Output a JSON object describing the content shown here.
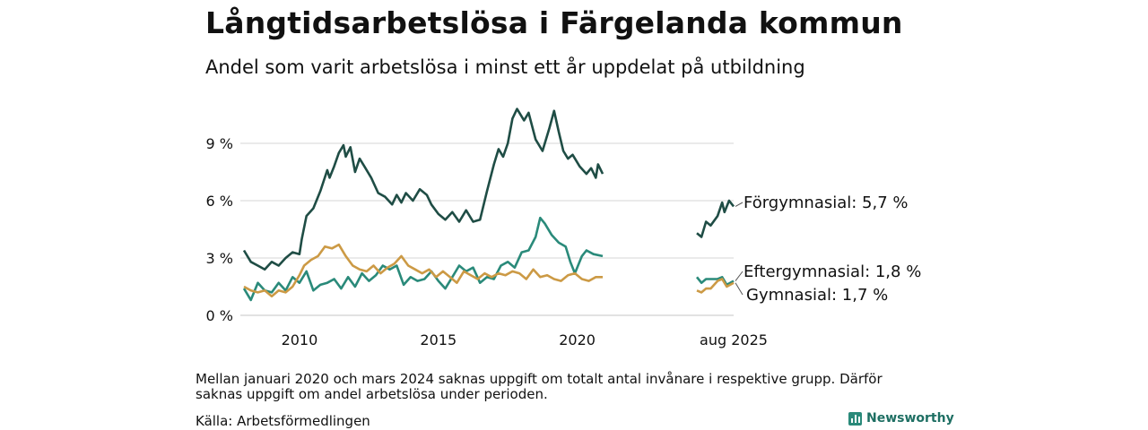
{
  "title": "Långtidsarbetslösa i Färgelanda kommun",
  "subtitle": "Andel som varit arbetslösa i minst ett år uppdelat på utbildning",
  "footnote": "Mellan januari 2020 och mars 2024 saknas uppgift om totalt antal invånare i respektive grupp. Därför saknas uppgift om andel arbetslösa under perioden.",
  "source": "Källa: Arbetsförmedlingen",
  "brand": "Newsworthy",
  "chart_data": {
    "type": "line",
    "title": "Långtidsarbetslösa i Färgelanda kommun",
    "subtitle": "Andel som varit arbetslösa i minst ett år uppdelat på utbildning",
    "x_ticks": [
      "2010",
      "2015",
      "2020",
      "aug 2025"
    ],
    "y_ticks": [
      "0 %",
      "3 %",
      "6 %",
      "9 %"
    ],
    "ylim": [
      0,
      11
    ],
    "grid": true,
    "segments": [
      {
        "from": "2008-01",
        "to": "2020-12"
      },
      {
        "from": "2024-04",
        "to": "2025-08"
      }
    ],
    "series": [
      {
        "name": "Förgymnasial",
        "end_label": "Förgymnasial: 5,7 %",
        "color": "#1f4d45",
        "points": [
          [
            "2008-01",
            3.4
          ],
          [
            "2008-04",
            2.8
          ],
          [
            "2008-07",
            2.6
          ],
          [
            "2008-10",
            2.4
          ],
          [
            "2009-01",
            2.8
          ],
          [
            "2009-04",
            2.6
          ],
          [
            "2009-07",
            3.0
          ],
          [
            "2009-10",
            3.3
          ],
          [
            "2010-01",
            3.2
          ],
          [
            "2010-02",
            4.0
          ],
          [
            "2010-04",
            5.2
          ],
          [
            "2010-07",
            5.6
          ],
          [
            "2010-10",
            6.5
          ],
          [
            "2011-01",
            7.6
          ],
          [
            "2011-02",
            7.2
          ],
          [
            "2011-04",
            7.8
          ],
          [
            "2011-06",
            8.5
          ],
          [
            "2011-08",
            8.9
          ],
          [
            "2011-09",
            8.3
          ],
          [
            "2011-11",
            8.8
          ],
          [
            "2012-01",
            7.5
          ],
          [
            "2012-03",
            8.2
          ],
          [
            "2012-05",
            7.8
          ],
          [
            "2012-08",
            7.2
          ],
          [
            "2012-11",
            6.4
          ],
          [
            "2013-02",
            6.2
          ],
          [
            "2013-05",
            5.8
          ],
          [
            "2013-07",
            6.3
          ],
          [
            "2013-09",
            5.9
          ],
          [
            "2013-11",
            6.4
          ],
          [
            "2014-02",
            6.0
          ],
          [
            "2014-05",
            6.6
          ],
          [
            "2014-08",
            6.3
          ],
          [
            "2014-10",
            5.8
          ],
          [
            "2015-01",
            5.3
          ],
          [
            "2015-04",
            5.0
          ],
          [
            "2015-07",
            5.4
          ],
          [
            "2015-10",
            4.9
          ],
          [
            "2016-01",
            5.5
          ],
          [
            "2016-04",
            4.9
          ],
          [
            "2016-07",
            5.0
          ],
          [
            "2016-10",
            6.5
          ],
          [
            "2017-01",
            7.9
          ],
          [
            "2017-03",
            8.7
          ],
          [
            "2017-05",
            8.3
          ],
          [
            "2017-07",
            9.0
          ],
          [
            "2017-09",
            10.3
          ],
          [
            "2017-11",
            10.8
          ],
          [
            "2018-02",
            10.2
          ],
          [
            "2018-04",
            10.6
          ],
          [
            "2018-07",
            9.2
          ],
          [
            "2018-10",
            8.6
          ],
          [
            "2019-01",
            9.8
          ],
          [
            "2019-03",
            10.7
          ],
          [
            "2019-05",
            9.6
          ],
          [
            "2019-07",
            8.6
          ],
          [
            "2019-09",
            8.2
          ],
          [
            "2019-11",
            8.4
          ],
          [
            "2020-02",
            7.8
          ],
          [
            "2020-05",
            7.4
          ],
          [
            "2020-07",
            7.7
          ],
          [
            "2020-09",
            7.2
          ],
          [
            "2020-10",
            7.9
          ],
          [
            "2020-12",
            7.4
          ],
          [
            "2024-04",
            4.3
          ],
          [
            "2024-06",
            4.1
          ],
          [
            "2024-08",
            4.9
          ],
          [
            "2024-10",
            4.7
          ],
          [
            "2025-01",
            5.2
          ],
          [
            "2025-03",
            5.9
          ],
          [
            "2025-04",
            5.4
          ],
          [
            "2025-06",
            6.0
          ],
          [
            "2025-08",
            5.7
          ]
        ]
      },
      {
        "name": "Eftergymnasial",
        "end_label": "Eftergymnasial: 1,8 %",
        "color": "#2a8a7a",
        "points": [
          [
            "2008-01",
            1.4
          ],
          [
            "2008-04",
            0.8
          ],
          [
            "2008-07",
            1.7
          ],
          [
            "2008-10",
            1.3
          ],
          [
            "2009-01",
            1.2
          ],
          [
            "2009-04",
            1.7
          ],
          [
            "2009-07",
            1.3
          ],
          [
            "2009-10",
            2.0
          ],
          [
            "2010-01",
            1.7
          ],
          [
            "2010-04",
            2.3
          ],
          [
            "2010-07",
            1.3
          ],
          [
            "2010-10",
            1.6
          ],
          [
            "2011-01",
            1.7
          ],
          [
            "2011-04",
            1.9
          ],
          [
            "2011-07",
            1.4
          ],
          [
            "2011-10",
            2.0
          ],
          [
            "2012-01",
            1.5
          ],
          [
            "2012-04",
            2.2
          ],
          [
            "2012-07",
            1.8
          ],
          [
            "2012-10",
            2.1
          ],
          [
            "2013-01",
            2.6
          ],
          [
            "2013-04",
            2.4
          ],
          [
            "2013-07",
            2.6
          ],
          [
            "2013-10",
            1.6
          ],
          [
            "2014-01",
            2.0
          ],
          [
            "2014-04",
            1.8
          ],
          [
            "2014-07",
            1.9
          ],
          [
            "2014-10",
            2.3
          ],
          [
            "2015-01",
            1.8
          ],
          [
            "2015-04",
            1.4
          ],
          [
            "2015-07",
            2.0
          ],
          [
            "2015-10",
            2.6
          ],
          [
            "2016-01",
            2.3
          ],
          [
            "2016-04",
            2.5
          ],
          [
            "2016-07",
            1.7
          ],
          [
            "2016-10",
            2.0
          ],
          [
            "2017-01",
            1.9
          ],
          [
            "2017-04",
            2.6
          ],
          [
            "2017-07",
            2.8
          ],
          [
            "2017-10",
            2.5
          ],
          [
            "2018-01",
            3.3
          ],
          [
            "2018-04",
            3.4
          ],
          [
            "2018-07",
            4.1
          ],
          [
            "2018-09",
            5.1
          ],
          [
            "2018-11",
            4.8
          ],
          [
            "2019-02",
            4.2
          ],
          [
            "2019-05",
            3.8
          ],
          [
            "2019-08",
            3.6
          ],
          [
            "2019-10",
            2.8
          ],
          [
            "2019-12",
            2.2
          ],
          [
            "2020-03",
            3.1
          ],
          [
            "2020-05",
            3.4
          ],
          [
            "2020-08",
            3.2
          ],
          [
            "2020-12",
            3.1
          ],
          [
            "2024-04",
            2.0
          ],
          [
            "2024-06",
            1.7
          ],
          [
            "2024-08",
            1.9
          ],
          [
            "2024-10",
            1.9
          ],
          [
            "2025-01",
            1.9
          ],
          [
            "2025-03",
            2.0
          ],
          [
            "2025-05",
            1.6
          ],
          [
            "2025-08",
            1.8
          ]
        ]
      },
      {
        "name": "Gymnasial",
        "end_label": "Gymnasial: 1,7 %",
        "color": "#cc9a45",
        "points": [
          [
            "2008-01",
            1.5
          ],
          [
            "2008-04",
            1.3
          ],
          [
            "2008-07",
            1.2
          ],
          [
            "2008-10",
            1.3
          ],
          [
            "2009-01",
            1.0
          ],
          [
            "2009-04",
            1.3
          ],
          [
            "2009-07",
            1.2
          ],
          [
            "2009-10",
            1.5
          ],
          [
            "2010-01",
            2.1
          ],
          [
            "2010-03",
            2.6
          ],
          [
            "2010-06",
            2.9
          ],
          [
            "2010-09",
            3.1
          ],
          [
            "2010-12",
            3.6
          ],
          [
            "2011-03",
            3.5
          ],
          [
            "2011-06",
            3.7
          ],
          [
            "2011-09",
            3.1
          ],
          [
            "2011-12",
            2.6
          ],
          [
            "2012-03",
            2.4
          ],
          [
            "2012-06",
            2.3
          ],
          [
            "2012-09",
            2.6
          ],
          [
            "2012-12",
            2.2
          ],
          [
            "2013-03",
            2.5
          ],
          [
            "2013-06",
            2.7
          ],
          [
            "2013-09",
            3.1
          ],
          [
            "2013-12",
            2.6
          ],
          [
            "2014-03",
            2.4
          ],
          [
            "2014-06",
            2.2
          ],
          [
            "2014-09",
            2.4
          ],
          [
            "2014-12",
            2.0
          ],
          [
            "2015-03",
            2.3
          ],
          [
            "2015-06",
            2.0
          ],
          [
            "2015-09",
            1.7
          ],
          [
            "2015-12",
            2.3
          ],
          [
            "2016-03",
            2.1
          ],
          [
            "2016-06",
            1.9
          ],
          [
            "2016-09",
            2.2
          ],
          [
            "2016-12",
            2.0
          ],
          [
            "2017-03",
            2.2
          ],
          [
            "2017-06",
            2.1
          ],
          [
            "2017-09",
            2.3
          ],
          [
            "2017-12",
            2.2
          ],
          [
            "2018-03",
            1.9
          ],
          [
            "2018-06",
            2.4
          ],
          [
            "2018-09",
            2.0
          ],
          [
            "2018-12",
            2.1
          ],
          [
            "2019-03",
            1.9
          ],
          [
            "2019-06",
            1.8
          ],
          [
            "2019-09",
            2.1
          ],
          [
            "2019-12",
            2.2
          ],
          [
            "2020-03",
            1.9
          ],
          [
            "2020-06",
            1.8
          ],
          [
            "2020-09",
            2.0
          ],
          [
            "2020-12",
            2.0
          ],
          [
            "2024-04",
            1.3
          ],
          [
            "2024-06",
            1.2
          ],
          [
            "2024-08",
            1.4
          ],
          [
            "2024-10",
            1.4
          ],
          [
            "2025-01",
            1.8
          ],
          [
            "2025-03",
            1.9
          ],
          [
            "2025-05",
            1.5
          ],
          [
            "2025-08",
            1.7
          ]
        ]
      }
    ]
  }
}
